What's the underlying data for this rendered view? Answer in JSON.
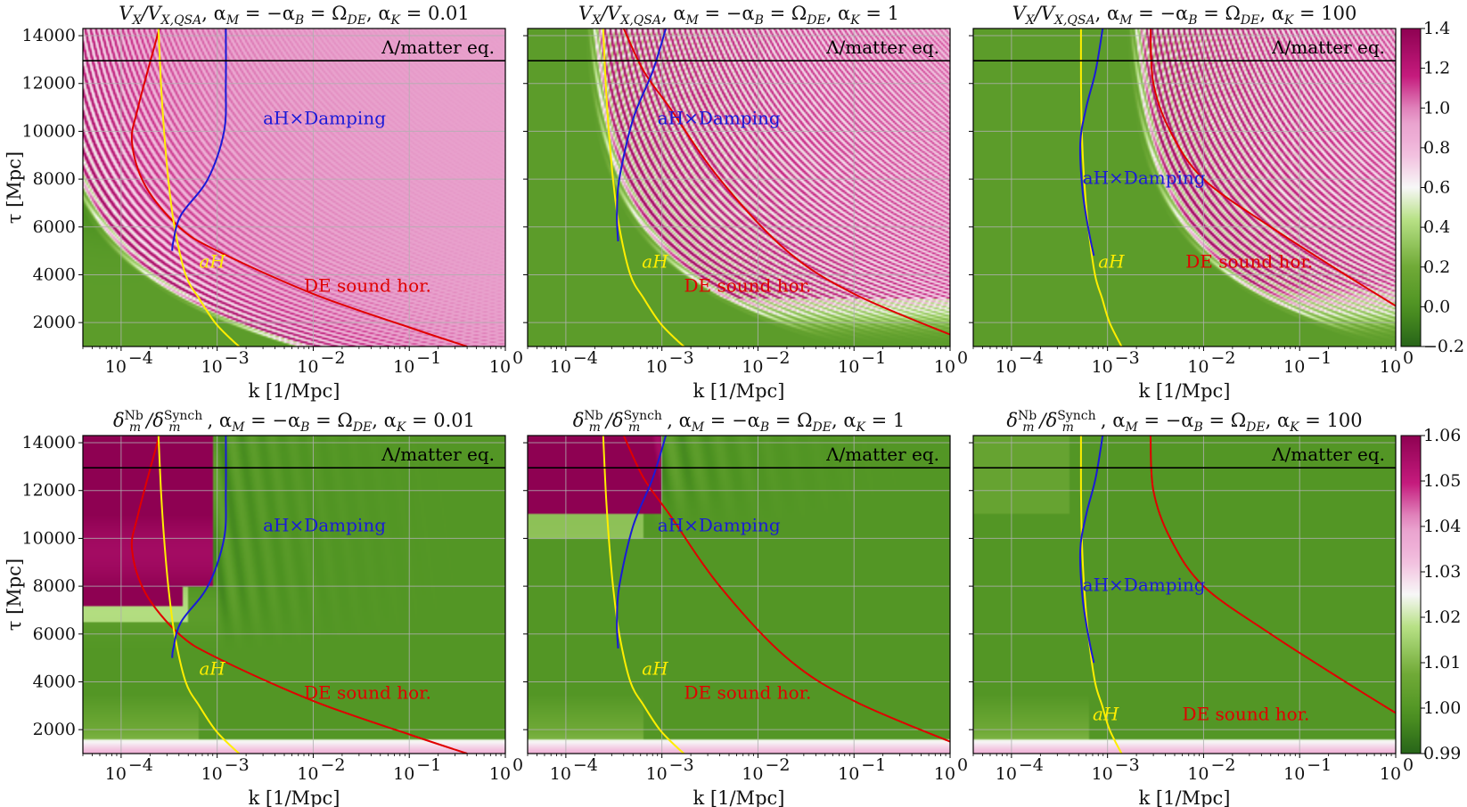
{
  "colors": {
    "aH": "#ffee00",
    "damping": "#1a1ad8",
    "sound": "#e00000",
    "equality": "#000000",
    "green_dark": "#276419",
    "green_mid": "#60a030",
    "white": "#f7f7f7",
    "pink": "#e8a0cc",
    "magenta": "#8e0152"
  },
  "chart_data": [
    {
      "id": "p1",
      "type": "heatmap",
      "row": 0,
      "col": 0,
      "title": "V_X/V_X,QSA, α_M = −α_B = Ω_DE, α_K = 0.01",
      "title_parts": {
        "main": "V",
        "sub1": "X",
        "slash": "/V",
        "sub2": "X,QSA",
        "rest": ", α",
        "m": "M",
        "eq1": " = −α",
        "b": "B",
        "eq2": " = Ω",
        "de": "DE",
        "tail": ", α",
        "k": "K",
        "val": " = 0.01"
      },
      "xlabel": "k [1/Mpc]",
      "ylabel": "τ [Mpc]",
      "xscale": "log",
      "xlim": [
        4e-05,
        1
      ],
      "ylim": [
        1000,
        14300
      ],
      "xticks": [
        {
          "v": 0.0001,
          "t": "10",
          "e": "−4"
        },
        {
          "v": 0.001,
          "t": "10",
          "e": "−3"
        },
        {
          "v": 0.01,
          "t": "10",
          "e": "−2"
        },
        {
          "v": 0.1,
          "t": "10",
          "e": "−1"
        },
        {
          "v": 1,
          "t": "10",
          "e": "0"
        }
      ],
      "yticks": [
        {
          "v": 2000,
          "t": "2000"
        },
        {
          "v": 4000,
          "t": "4000"
        },
        {
          "v": 6000,
          "t": "6000"
        },
        {
          "v": 8000,
          "t": "8000"
        },
        {
          "v": 10000,
          "t": "10000"
        },
        {
          "v": 12000,
          "t": "12000"
        },
        {
          "v": 14000,
          "t": "14000"
        }
      ],
      "field": "ratio",
      "alphaK": 0.01,
      "equality_tau": 12950,
      "line_equality": "Λ/matter eq.",
      "line_aH": "aH",
      "line_damping": "aH×Damping",
      "line_sound": "DE sound hor.",
      "aH_label_at": [
        0.00065,
        4300
      ],
      "damping_label_at": [
        0.003,
        10300
      ],
      "sound_label_at": [
        0.008,
        3300
      ],
      "aH_curve": [
        [
          0.000245,
          14300
        ],
        [
          0.00026,
          12000
        ],
        [
          0.00028,
          10000
        ],
        [
          0.00031,
          8000
        ],
        [
          0.00036,
          6000
        ],
        [
          0.00047,
          4000
        ],
        [
          0.00065,
          3000
        ],
        [
          0.00095,
          2000
        ],
        [
          0.0014,
          1300
        ],
        [
          0.0017,
          1000
        ]
      ],
      "damping_curve": [
        [
          0.00123,
          14300
        ],
        [
          0.00123,
          12000
        ],
        [
          0.00118,
          10000
        ],
        [
          0.0008,
          8000
        ],
        [
          0.00042,
          6500
        ],
        [
          0.00035,
          5400
        ],
        [
          0.00034,
          5000
        ]
      ],
      "sound_curve": [
        [
          0.00025,
          14300
        ],
        [
          0.00015,
          11000
        ],
        [
          0.00013,
          9500
        ],
        [
          0.00018,
          7700
        ],
        [
          0.0004,
          6000
        ],
        [
          0.001,
          5000
        ],
        [
          0.01,
          3200
        ],
        [
          0.1,
          1800
        ],
        [
          0.4,
          1000
        ]
      ],
      "colorbar": "cb1"
    },
    {
      "id": "p2",
      "type": "heatmap",
      "row": 0,
      "col": 1,
      "title": "V_X/V_X,QSA, α_M = −α_B = Ω_DE, α_K = 1",
      "title_parts": {
        "main": "V",
        "sub1": "X",
        "slash": "/V",
        "sub2": "X,QSA",
        "rest": ", α",
        "m": "M",
        "eq1": " = −α",
        "b": "B",
        "eq2": " = Ω",
        "de": "DE",
        "tail": ", α",
        "k": "K",
        "val": " = 1"
      },
      "xlabel": "k [1/Mpc]",
      "ylabel": "",
      "xscale": "log",
      "xlim": [
        4e-05,
        1
      ],
      "ylim": [
        1000,
        14300
      ],
      "xticks": [
        {
          "v": 0.0001,
          "t": "10",
          "e": "−4"
        },
        {
          "v": 0.001,
          "t": "10",
          "e": "−3"
        },
        {
          "v": 0.01,
          "t": "10",
          "e": "−2"
        },
        {
          "v": 0.1,
          "t": "10",
          "e": "−1"
        },
        {
          "v": 1,
          "t": "10",
          "e": "0"
        }
      ],
      "yticks": [],
      "field": "ratio",
      "alphaK": 1,
      "equality_tau": 12950,
      "line_equality": "Λ/matter eq.",
      "line_aH": "aH",
      "line_damping": "aH×Damping",
      "line_sound": "DE sound hor.",
      "aH_label_at": [
        0.00062,
        4300
      ],
      "damping_label_at": [
        0.0009,
        10300
      ],
      "sound_label_at": [
        0.0017,
        3300
      ],
      "aH_curve": [
        [
          0.000245,
          14300
        ],
        [
          0.00026,
          12000
        ],
        [
          0.00028,
          10000
        ],
        [
          0.00031,
          8000
        ],
        [
          0.00036,
          6000
        ],
        [
          0.00047,
          4000
        ],
        [
          0.00065,
          3000
        ],
        [
          0.00095,
          2000
        ],
        [
          0.0014,
          1300
        ],
        [
          0.0017,
          1000
        ]
      ],
      "damping_curve": [
        [
          0.0011,
          14300
        ],
        [
          0.0008,
          12500
        ],
        [
          0.0005,
          10500
        ],
        [
          0.00036,
          8000
        ],
        [
          0.00034,
          6500
        ],
        [
          0.00035,
          5400
        ]
      ],
      "sound_curve": [
        [
          0.0004,
          14300
        ],
        [
          0.00065,
          12500
        ],
        [
          0.0012,
          11000
        ],
        [
          0.004,
          8000
        ],
        [
          0.02,
          5000
        ],
        [
          0.1,
          3200
        ],
        [
          1,
          1500
        ]
      ],
      "colorbar": "cb1"
    },
    {
      "id": "p3",
      "type": "heatmap",
      "row": 0,
      "col": 2,
      "title": "V_X/V_X,QSA, α_M = −α_B = Ω_DE, α_K = 100",
      "title_parts": {
        "main": "V",
        "sub1": "X",
        "slash": "/V",
        "sub2": "X,QSA",
        "rest": ", α",
        "m": "M",
        "eq1": " = −α",
        "b": "B",
        "eq2": " = Ω",
        "de": "DE",
        "tail": ", α",
        "k": "K",
        "val": " = 100"
      },
      "xlabel": "k [1/Mpc]",
      "ylabel": "",
      "xscale": "log",
      "xlim": [
        4e-05,
        1
      ],
      "ylim": [
        1000,
        14300
      ],
      "xticks": [
        {
          "v": 0.0001,
          "t": "10",
          "e": "−4"
        },
        {
          "v": 0.001,
          "t": "10",
          "e": "−3"
        },
        {
          "v": 0.01,
          "t": "10",
          "e": "−2"
        },
        {
          "v": 0.1,
          "t": "10",
          "e": "−1"
        },
        {
          "v": 1,
          "t": "10",
          "e": "0"
        }
      ],
      "yticks": [],
      "field": "ratio",
      "alphaK": 100,
      "equality_tau": 12950,
      "line_equality": "Λ/matter eq.",
      "line_aH": "aH",
      "line_damping": "aH×Damping",
      "line_sound": "DE sound hor.",
      "aH_label_at": [
        0.0008,
        4300
      ],
      "damping_label_at": [
        0.00055,
        7800
      ],
      "sound_label_at": [
        0.0065,
        4300
      ],
      "aH_curve": [
        [
          0.00053,
          14300
        ],
        [
          0.00053,
          12000
        ],
        [
          0.00054,
          10000
        ],
        [
          0.00057,
          8000
        ],
        [
          0.00063,
          6000
        ],
        [
          0.00074,
          4000
        ],
        [
          0.00088,
          3000
        ],
        [
          0.00105,
          2000
        ],
        [
          0.0014,
          1000
        ]
      ],
      "damping_curve": [
        [
          0.00089,
          14300
        ],
        [
          0.00075,
          12500
        ],
        [
          0.0006,
          11000
        ],
        [
          0.00052,
          9500
        ],
        [
          0.00055,
          7500
        ],
        [
          0.00064,
          5800
        ],
        [
          0.00072,
          4800
        ]
      ],
      "sound_curve": [
        [
          0.0028,
          14300
        ],
        [
          0.003,
          12000
        ],
        [
          0.0045,
          10000
        ],
        [
          0.01,
          8000
        ],
        [
          0.05,
          6000
        ],
        [
          0.3,
          4000
        ],
        [
          1,
          2700
        ]
      ],
      "colorbar": "cb1"
    },
    {
      "id": "p4",
      "type": "heatmap",
      "row": 1,
      "col": 0,
      "title": "δ_m^Nb/δ_m^Synch, α_M = −α_B = Ω_DE, α_K = 0.01",
      "title_parts": {
        "main": "δ",
        "sup1": "Nb",
        "sub1": "m",
        "slash": "/δ",
        "sup2": "Synch",
        "sub2": "m",
        "rest": ", α",
        "m": "M",
        "eq1": " = −α",
        "b": "B",
        "eq2": " = Ω",
        "de": "DE",
        "tail": ", α",
        "k": "K",
        "val": " = 0.01"
      },
      "xlabel": "k [1/Mpc]",
      "ylabel": "τ [Mpc]",
      "xscale": "log",
      "xlim": [
        4e-05,
        1
      ],
      "ylim": [
        1000,
        14300
      ],
      "xticks": [
        {
          "v": 0.0001,
          "t": "10",
          "e": "−4"
        },
        {
          "v": 0.001,
          "t": "10",
          "e": "−3"
        },
        {
          "v": 0.01,
          "t": "10",
          "e": "−2"
        },
        {
          "v": 0.1,
          "t": "10",
          "e": "−1"
        },
        {
          "v": 1,
          "t": "10",
          "e": "0"
        }
      ],
      "yticks": [
        {
          "v": 2000,
          "t": "2000"
        },
        {
          "v": 4000,
          "t": "4000"
        },
        {
          "v": 6000,
          "t": "6000"
        },
        {
          "v": 8000,
          "t": "8000"
        },
        {
          "v": 10000,
          "t": "10000"
        },
        {
          "v": 12000,
          "t": "12000"
        },
        {
          "v": 14000,
          "t": "14000"
        }
      ],
      "field": "delta",
      "alphaK": 0.01,
      "equality_tau": 12950,
      "line_equality": "Λ/matter eq.",
      "line_aH": "aH",
      "line_damping": "aH×Damping",
      "line_sound": "DE sound hor.",
      "aH_label_at": [
        0.00065,
        4300
      ],
      "damping_label_at": [
        0.003,
        10300
      ],
      "sound_label_at": [
        0.008,
        3300
      ],
      "aH_curve": [
        [
          0.000245,
          14300
        ],
        [
          0.00026,
          12000
        ],
        [
          0.00028,
          10000
        ],
        [
          0.00031,
          8000
        ],
        [
          0.00036,
          6000
        ],
        [
          0.00047,
          4000
        ],
        [
          0.00065,
          3000
        ],
        [
          0.00095,
          2000
        ],
        [
          0.0014,
          1300
        ],
        [
          0.0017,
          1000
        ]
      ],
      "damping_curve": [
        [
          0.00123,
          14300
        ],
        [
          0.00123,
          12000
        ],
        [
          0.00118,
          10000
        ],
        [
          0.0008,
          8000
        ],
        [
          0.00042,
          6500
        ],
        [
          0.00035,
          5400
        ],
        [
          0.00034,
          5000
        ]
      ],
      "sound_curve": [
        [
          0.00025,
          14300
        ],
        [
          0.00015,
          11000
        ],
        [
          0.00013,
          9500
        ],
        [
          0.00018,
          7700
        ],
        [
          0.0004,
          6000
        ],
        [
          0.001,
          5000
        ],
        [
          0.01,
          3200
        ],
        [
          0.1,
          1800
        ],
        [
          0.4,
          1000
        ]
      ],
      "colorbar": "cb2"
    },
    {
      "id": "p5",
      "type": "heatmap",
      "row": 1,
      "col": 1,
      "title": "δ_m^Nb/δ_m^Synch, α_M = −α_B = Ω_DE, α_K = 1",
      "title_parts": {
        "main": "δ",
        "sup1": "Nb",
        "sub1": "m",
        "slash": "/δ",
        "sup2": "Synch",
        "sub2": "m",
        "rest": ", α",
        "m": "M",
        "eq1": " = −α",
        "b": "B",
        "eq2": " = Ω",
        "de": "DE",
        "tail": ", α",
        "k": "K",
        "val": " = 1"
      },
      "xlabel": "k [1/Mpc]",
      "ylabel": "",
      "xscale": "log",
      "xlim": [
        4e-05,
        1
      ],
      "ylim": [
        1000,
        14300
      ],
      "xticks": [
        {
          "v": 0.0001,
          "t": "10",
          "e": "−4"
        },
        {
          "v": 0.001,
          "t": "10",
          "e": "−3"
        },
        {
          "v": 0.01,
          "t": "10",
          "e": "−2"
        },
        {
          "v": 0.1,
          "t": "10",
          "e": "−1"
        },
        {
          "v": 1,
          "t": "10",
          "e": "0"
        }
      ],
      "yticks": [],
      "field": "delta",
      "alphaK": 1,
      "equality_tau": 12950,
      "line_equality": "Λ/matter eq.",
      "line_aH": "aH",
      "line_damping": "aH×Damping",
      "line_sound": "DE sound hor.",
      "aH_label_at": [
        0.00062,
        4300
      ],
      "damping_label_at": [
        0.0009,
        10300
      ],
      "sound_label_at": [
        0.0017,
        3300
      ],
      "aH_curve": [
        [
          0.000245,
          14300
        ],
        [
          0.00026,
          12000
        ],
        [
          0.00028,
          10000
        ],
        [
          0.00031,
          8000
        ],
        [
          0.00036,
          6000
        ],
        [
          0.00047,
          4000
        ],
        [
          0.00065,
          3000
        ],
        [
          0.00095,
          2000
        ],
        [
          0.0014,
          1300
        ],
        [
          0.0017,
          1000
        ]
      ],
      "damping_curve": [
        [
          0.0011,
          14300
        ],
        [
          0.0008,
          12500
        ],
        [
          0.0005,
          10500
        ],
        [
          0.00036,
          8000
        ],
        [
          0.00034,
          6500
        ],
        [
          0.00035,
          5400
        ]
      ],
      "sound_curve": [
        [
          0.0004,
          14300
        ],
        [
          0.00065,
          12500
        ],
        [
          0.0012,
          11000
        ],
        [
          0.004,
          8000
        ],
        [
          0.02,
          5000
        ],
        [
          0.1,
          3200
        ],
        [
          1,
          1500
        ]
      ],
      "colorbar": "cb2"
    },
    {
      "id": "p6",
      "type": "heatmap",
      "row": 1,
      "col": 2,
      "title": "δ_m^Nb/δ_m^Synch, α_M = −α_B = Ω_DE, α_K = 100",
      "title_parts": {
        "main": "δ",
        "sup1": "Nb",
        "sub1": "m",
        "slash": "/δ",
        "sup2": "Synch",
        "sub2": "m",
        "rest": ", α",
        "m": "M",
        "eq1": " = −α",
        "b": "B",
        "eq2": " = Ω",
        "de": "DE",
        "tail": ", α",
        "k": "K",
        "val": " = 100"
      },
      "xlabel": "k [1/Mpc]",
      "ylabel": "",
      "xscale": "log",
      "xlim": [
        4e-05,
        1
      ],
      "ylim": [
        1000,
        14300
      ],
      "xticks": [
        {
          "v": 0.0001,
          "t": "10",
          "e": "−4"
        },
        {
          "v": 0.001,
          "t": "10",
          "e": "−3"
        },
        {
          "v": 0.01,
          "t": "10",
          "e": "−2"
        },
        {
          "v": 0.1,
          "t": "10",
          "e": "−1"
        },
        {
          "v": 1,
          "t": "10",
          "e": "0"
        }
      ],
      "yticks": [],
      "field": "delta",
      "alphaK": 100,
      "equality_tau": 12950,
      "line_equality": "Λ/matter eq.",
      "line_aH": "aH",
      "line_damping": "aH×Damping",
      "line_sound": "DE sound hor.",
      "aH_label_at": [
        0.0007,
        2400
      ],
      "damping_label_at": [
        0.00055,
        7800
      ],
      "sound_label_at": [
        0.006,
        2400
      ],
      "aH_curve": [
        [
          0.00053,
          14300
        ],
        [
          0.00053,
          12000
        ],
        [
          0.00054,
          10000
        ],
        [
          0.00057,
          8000
        ],
        [
          0.00063,
          6000
        ],
        [
          0.00074,
          4000
        ],
        [
          0.00088,
          3000
        ],
        [
          0.00105,
          2000
        ],
        [
          0.0014,
          1000
        ]
      ],
      "damping_curve": [
        [
          0.00089,
          14300
        ],
        [
          0.00075,
          12500
        ],
        [
          0.0006,
          11000
        ],
        [
          0.00052,
          9500
        ],
        [
          0.00055,
          7500
        ],
        [
          0.00064,
          5800
        ],
        [
          0.00072,
          4800
        ]
      ],
      "sound_curve": [
        [
          0.0028,
          14300
        ],
        [
          0.003,
          12000
        ],
        [
          0.0045,
          10000
        ],
        [
          0.01,
          8000
        ],
        [
          0.05,
          6000
        ],
        [
          0.3,
          4000
        ],
        [
          1,
          2700
        ]
      ],
      "colorbar": "cb2"
    }
  ],
  "colorbars": {
    "cb1": {
      "min": -0.2,
      "max": 1.4,
      "ticks": [
        "−0.2",
        "0.0",
        "0.2",
        "0.4",
        "0.6",
        "0.8",
        "1.0",
        "1.2",
        "1.4"
      ],
      "tick_values": [
        -0.2,
        0.0,
        0.2,
        0.4,
        0.6,
        0.8,
        1.0,
        1.2,
        1.4
      ]
    },
    "cb2": {
      "min": 0.99,
      "max": 1.06,
      "ticks": [
        "0.99",
        "1.00",
        "1.01",
        "1.02",
        "1.03",
        "1.04",
        "1.05",
        "1.06"
      ],
      "tick_values": [
        0.99,
        1.0,
        1.01,
        1.02,
        1.03,
        1.04,
        1.05,
        1.06
      ]
    }
  }
}
